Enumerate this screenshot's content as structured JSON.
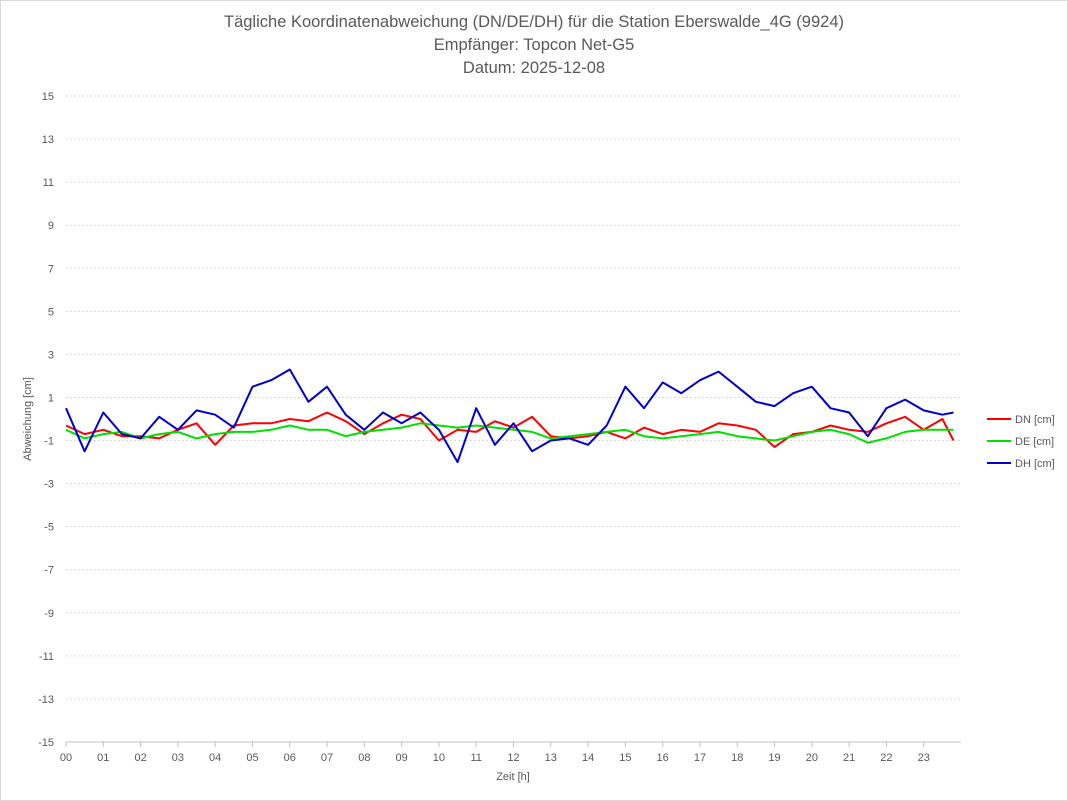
{
  "chart_data": {
    "type": "line",
    "title": "Tägliche Koordinatenabweichung (DN/DE/DH) für die Station Eberswalde_4G (9924)",
    "subtitle": "Empfänger: Topcon Net-G5",
    "date_label": "Datum: 2025-12-08",
    "xlabel": "Zeit [h]",
    "ylabel": "Abweichung [cm]",
    "ylim": [
      -15,
      15
    ],
    "xlim": [
      0,
      24
    ],
    "yticks": [
      "15",
      "13",
      "11",
      "9",
      "7",
      "5",
      "3",
      "1",
      "-1",
      "-3",
      "-5",
      "-7",
      "-9",
      "-11",
      "-13",
      "-15"
    ],
    "xticks": [
      "00",
      "01",
      "02",
      "03",
      "04",
      "05",
      "06",
      "07",
      "08",
      "09",
      "10",
      "11",
      "12",
      "13",
      "14",
      "15",
      "16",
      "17",
      "18",
      "19",
      "20",
      "21",
      "22",
      "23"
    ],
    "grid": true,
    "legend_position": "right",
    "x": [
      0,
      0.5,
      1,
      1.5,
      2,
      2.5,
      3,
      3.5,
      4,
      4.5,
      5,
      5.5,
      6,
      6.5,
      7,
      7.5,
      8,
      8.5,
      9,
      9.5,
      10,
      10.5,
      11,
      11.5,
      12,
      12.5,
      13,
      13.5,
      14,
      14.5,
      15,
      15.5,
      16,
      16.5,
      17,
      17.5,
      18,
      18.5,
      19,
      19.5,
      20,
      20.5,
      21,
      21.5,
      22,
      22.5,
      23,
      23.5,
      23.8
    ],
    "series": [
      {
        "name": "DN [cm]",
        "color": "#ff0000",
        "values": [
          -0.3,
          -0.7,
          -0.5,
          -0.8,
          -0.8,
          -0.9,
          -0.5,
          -0.2,
          -1.2,
          -0.3,
          -0.2,
          -0.2,
          0.0,
          -0.1,
          0.3,
          -0.1,
          -0.7,
          -0.2,
          0.2,
          0.0,
          -1.0,
          -0.5,
          -0.6,
          -0.1,
          -0.4,
          0.1,
          -0.8,
          -0.9,
          -0.8,
          -0.6,
          -0.9,
          -0.4,
          -0.7,
          -0.5,
          -0.6,
          -0.2,
          -0.3,
          -0.5,
          -1.3,
          -0.7,
          -0.6,
          -0.3,
          -0.5,
          -0.6,
          -0.2,
          0.1,
          -0.5,
          0.0,
          -1.0
        ]
      },
      {
        "name": "DE [cm]",
        "color": "#00e000",
        "values": [
          -0.5,
          -0.9,
          -0.7,
          -0.6,
          -0.9,
          -0.7,
          -0.6,
          -0.9,
          -0.7,
          -0.6,
          -0.6,
          -0.5,
          -0.3,
          -0.5,
          -0.5,
          -0.8,
          -0.6,
          -0.5,
          -0.4,
          -0.2,
          -0.3,
          -0.4,
          -0.3,
          -0.4,
          -0.5,
          -0.6,
          -0.9,
          -0.8,
          -0.7,
          -0.6,
          -0.5,
          -0.8,
          -0.9,
          -0.8,
          -0.7,
          -0.6,
          -0.8,
          -0.9,
          -1.0,
          -0.8,
          -0.6,
          -0.5,
          -0.7,
          -1.1,
          -0.9,
          -0.6,
          -0.5,
          -0.5,
          -0.5
        ]
      },
      {
        "name": "DH [cm]",
        "color": "#0000cc",
        "values": [
          0.5,
          -1.5,
          0.3,
          -0.7,
          -0.9,
          0.1,
          -0.5,
          0.4,
          0.2,
          -0.4,
          1.5,
          1.8,
          2.3,
          0.8,
          1.5,
          0.2,
          -0.5,
          0.3,
          -0.2,
          0.3,
          -0.5,
          -2.0,
          0.5,
          -1.2,
          -0.2,
          -1.5,
          -1.0,
          -0.9,
          -1.2,
          -0.3,
          1.5,
          0.5,
          1.7,
          1.2,
          1.8,
          2.2,
          1.5,
          0.8,
          0.6,
          1.2,
          1.5,
          0.5,
          0.3,
          -0.8,
          0.5,
          0.9,
          0.4,
          0.2,
          0.3
        ]
      }
    ]
  }
}
